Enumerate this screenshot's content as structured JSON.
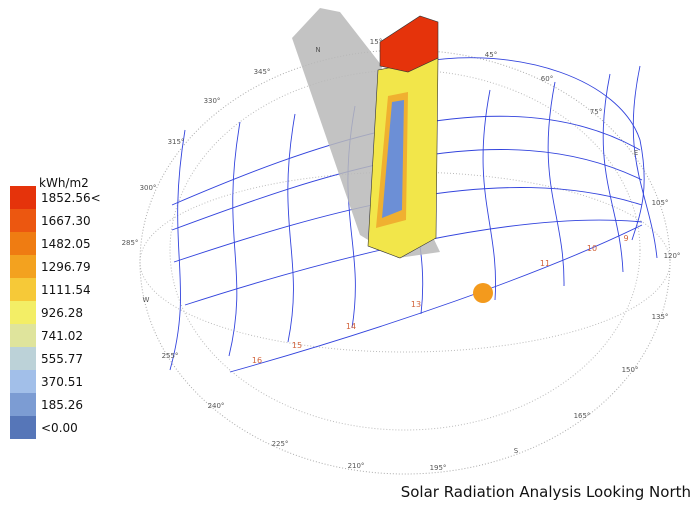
{
  "legend": {
    "title": "kWh/m2",
    "items": [
      {
        "label": "1852.56<",
        "color": "#e5330b"
      },
      {
        "label": "1667.30",
        "color": "#ec5710"
      },
      {
        "label": "1482.05",
        "color": "#ef7c12"
      },
      {
        "label": "1296.79",
        "color": "#f3a21f"
      },
      {
        "label": "1111.54",
        "color": "#f6c938"
      },
      {
        "label": "926.28",
        "color": "#f3ee66"
      },
      {
        "label": "741.02",
        "color": "#dfe49c"
      },
      {
        "label": "555.77",
        "color": "#bcd2d8"
      },
      {
        "label": "370.51",
        "color": "#a2bfe9"
      },
      {
        "label": "185.26",
        "color": "#7c9cd3"
      },
      {
        "label": "<0.00",
        "color": "#5676b8"
      }
    ]
  },
  "compass": [
    "N",
    "15°",
    "345°",
    "330°",
    "315°",
    "300°",
    "285°",
    "W",
    "255°",
    "240°",
    "225°",
    "210°",
    "195°",
    "S",
    "165°",
    "150°",
    "135°",
    "120°",
    "105°",
    "E",
    "75°",
    "60°",
    "45°"
  ],
  "hours": [
    "16",
    "15",
    "14",
    "13",
    "11",
    "10",
    "9"
  ],
  "caption": "Solar Radiation Analysis Looking North"
}
